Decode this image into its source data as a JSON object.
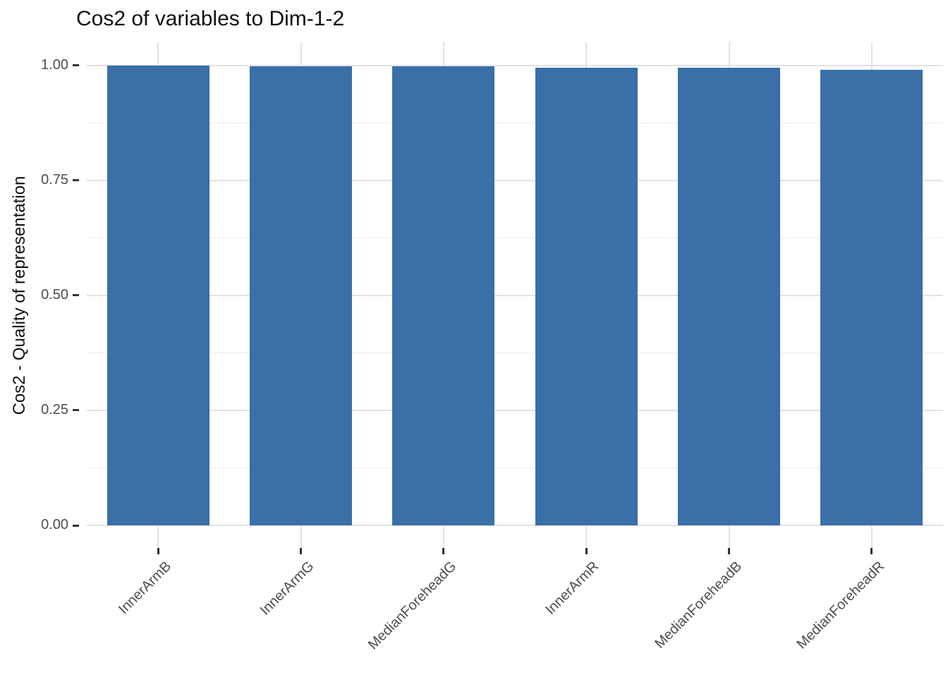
{
  "title": "Cos2 of variables to Dim-1-2",
  "colors": {
    "bar": "#3A6FA8",
    "grid_major": "#E2E2E2",
    "grid_minor": "#EBEBEB",
    "tick_mark": "#333333",
    "tick_label": "#4D4D4D",
    "title_text": "#111111",
    "background": "#FFFFFF"
  },
  "chart_data": {
    "type": "bar",
    "title": "Cos2 of variables to Dim-1-2",
    "xlabel": "",
    "ylabel": "Cos2 - Quality of representation",
    "categories": [
      "InnerArmB",
      "InnerArmG",
      "MedianForeheadG",
      "InnerArmR",
      "MedianForeheadB",
      "MedianForeheadR"
    ],
    "values": [
      0.9996,
      0.9979,
      0.9975,
      0.9948,
      0.9946,
      0.9905
    ],
    "ylim": [
      0,
      1
    ],
    "y_major_ticks": [
      0,
      0.25,
      0.5,
      0.75,
      1.0
    ],
    "y_tick_labels": [
      "0.00",
      "0.25",
      "0.50",
      "0.75",
      "1.00"
    ],
    "y_minor_ticks": [
      0.125,
      0.375,
      0.625,
      0.875
    ],
    "x_tick_rotation_deg": 45,
    "grid": "horizontal major+minor, vertical major at category centers",
    "legend": "none",
    "bar_color": "#3A6FA8"
  }
}
